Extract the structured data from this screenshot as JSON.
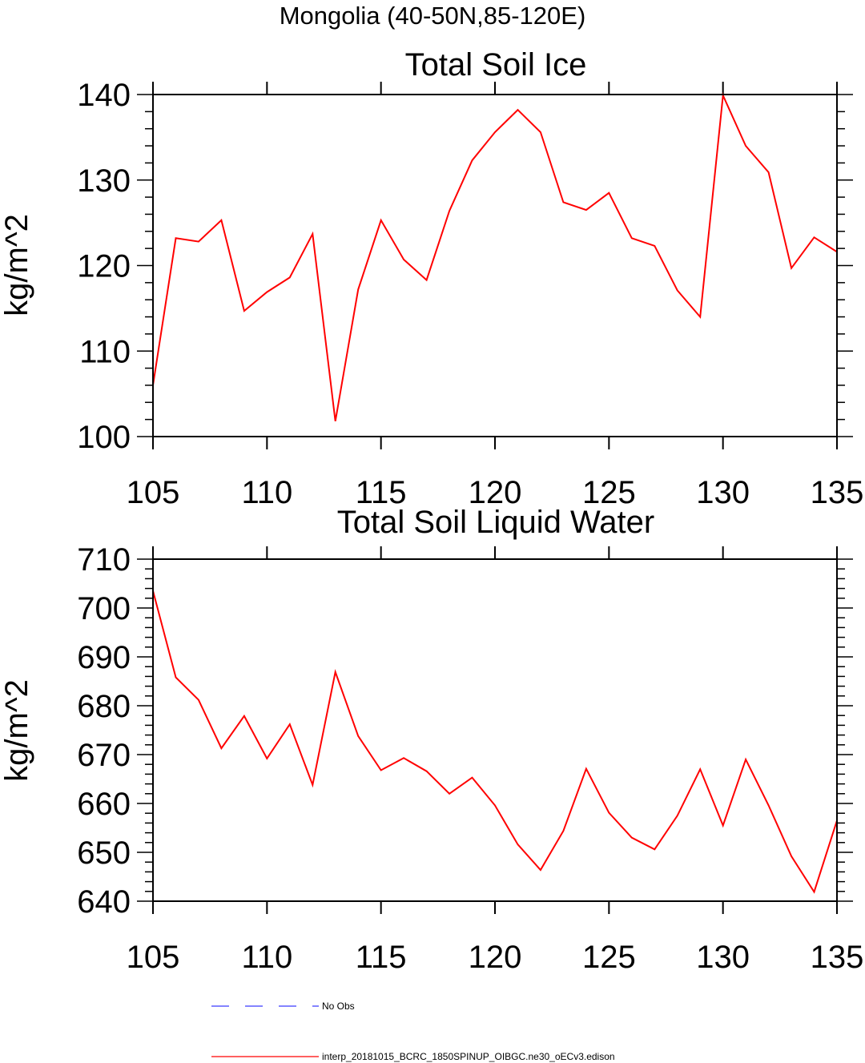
{
  "figure": {
    "title": "Mongolia (40-50N,85-120E)"
  },
  "chart_data": [
    {
      "type": "line",
      "title": "Total Soil Ice",
      "xlabel": "",
      "ylabel": "kg/m^2",
      "xlim": [
        105,
        135
      ],
      "ylim": [
        100,
        140
      ],
      "xticks": [
        105,
        110,
        115,
        120,
        125,
        130,
        135
      ],
      "yticks": [
        100,
        110,
        120,
        130,
        140
      ],
      "grid": false,
      "x": [
        105,
        106,
        107,
        108,
        109,
        110,
        111,
        112,
        113,
        114,
        115,
        116,
        117,
        118,
        119,
        120,
        121,
        122,
        123,
        124,
        125,
        126,
        127,
        128,
        129,
        130,
        131,
        132,
        133,
        134,
        135
      ],
      "series": [
        {
          "name": "interp_20181015_BCRC_1850SPINUP_OIBGC.ne30_oECv3.edison",
          "color": "#ff0000",
          "values": [
            106.0,
            123.2,
            122.8,
            125.3,
            114.7,
            116.9,
            118.6,
            123.7,
            101.8,
            117.2,
            125.3,
            120.7,
            118.3,
            126.4,
            132.3,
            135.6,
            138.2,
            135.6,
            127.4,
            126.5,
            128.5,
            123.2,
            122.3,
            117.1,
            114.0,
            139.9,
            134.0,
            130.9,
            119.7,
            123.3,
            121.6
          ]
        }
      ]
    },
    {
      "type": "line",
      "title": "Total Soil Liquid Water",
      "xlabel": "",
      "ylabel": "kg/m^2",
      "xlim": [
        105,
        135
      ],
      "ylim": [
        640,
        710
      ],
      "xticks": [
        105,
        110,
        115,
        120,
        125,
        130,
        135
      ],
      "yticks": [
        640,
        650,
        660,
        670,
        680,
        690,
        700,
        710
      ],
      "grid": false,
      "x": [
        105,
        106,
        107,
        108,
        109,
        110,
        111,
        112,
        113,
        114,
        115,
        116,
        117,
        118,
        119,
        120,
        121,
        122,
        123,
        124,
        125,
        126,
        127,
        128,
        129,
        130,
        131,
        132,
        133,
        134,
        135
      ],
      "series": [
        {
          "name": "interp_20181015_BCRC_1850SPINUP_OIBGC.ne30_oECv3.edison",
          "color": "#ff0000",
          "values": [
            703.5,
            685.8,
            681.2,
            671.3,
            677.9,
            669.2,
            676.2,
            663.8,
            686.9,
            673.8,
            666.8,
            669.3,
            666.6,
            662.0,
            665.3,
            659.6,
            651.6,
            646.4,
            654.4,
            667.1,
            658.1,
            653.0,
            650.6,
            657.5,
            667.0,
            655.5,
            669.0,
            659.6,
            649.2,
            641.9,
            656.5
          ]
        }
      ]
    }
  ],
  "legend": {
    "items": [
      {
        "label": "No Obs",
        "color": "#3b3bff",
        "style": "dashed"
      },
      {
        "label": "interp_20181015_BCRC_1850SPINUP_OIBGC.ne30_oECv3.edison",
        "color": "#ff0000",
        "style": "solid"
      }
    ]
  }
}
